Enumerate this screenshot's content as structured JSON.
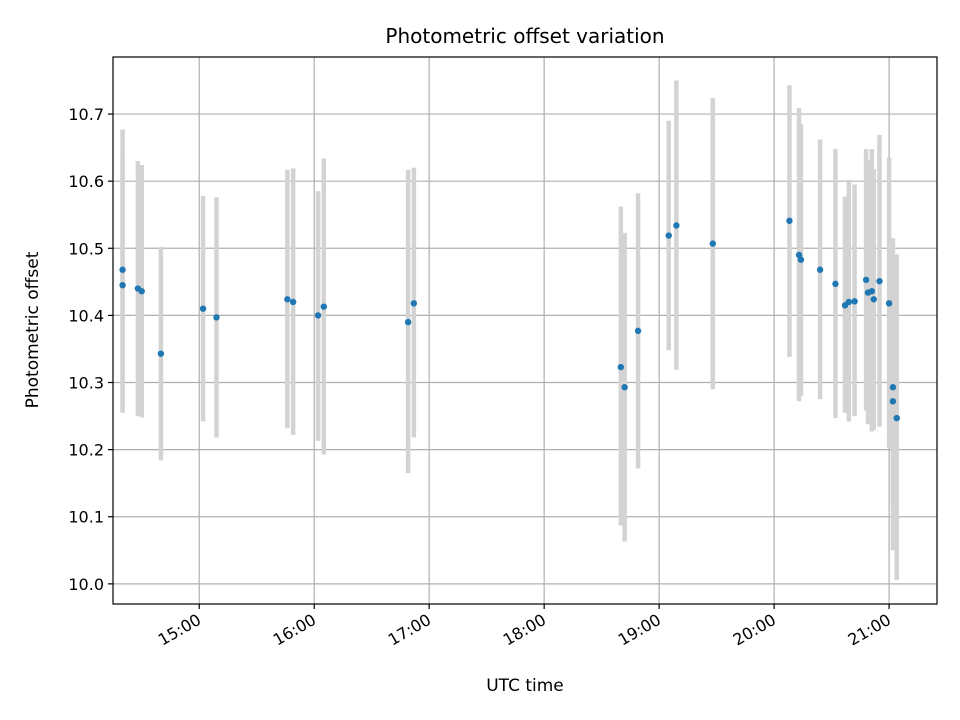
{
  "chart_data": {
    "type": "scatter",
    "title": "Photometric offset variation",
    "xlabel": "UTC time",
    "ylabel": "Photometric offset",
    "xlim": [
      "14:15",
      "21:25"
    ],
    "ylim": [
      9.97,
      10.785
    ],
    "grid": true,
    "legend": "none",
    "colors": {
      "point": "#1f77b4",
      "errorbar": "#d3d3d3",
      "grid": "#b0b0b0"
    },
    "x_ticks": [
      {
        "value": "15:00",
        "label": "15:00"
      },
      {
        "value": "16:00",
        "label": "16:00"
      },
      {
        "value": "17:00",
        "label": "17:00"
      },
      {
        "value": "18:00",
        "label": "18:00"
      },
      {
        "value": "19:00",
        "label": "19:00"
      },
      {
        "value": "20:00",
        "label": "20:00"
      },
      {
        "value": "21:00",
        "label": "21:00"
      }
    ],
    "y_ticks": [
      {
        "value": 10.0,
        "label": "10.0"
      },
      {
        "value": 10.1,
        "label": "10.1"
      },
      {
        "value": 10.2,
        "label": "10.2"
      },
      {
        "value": 10.3,
        "label": "10.3"
      },
      {
        "value": 10.4,
        "label": "10.4"
      },
      {
        "value": 10.5,
        "label": "10.5"
      },
      {
        "value": 10.6,
        "label": "10.6"
      },
      {
        "value": 10.7,
        "label": "10.7"
      }
    ],
    "points": [
      {
        "x": "14:20",
        "y": 10.445,
        "lo": 10.255,
        "hi": 10.635
      },
      {
        "x": "14:20",
        "y": 10.468,
        "lo": 10.258,
        "hi": 10.677
      },
      {
        "x": "14:28",
        "y": 10.44,
        "lo": 10.25,
        "hi": 10.63
      },
      {
        "x": "14:30",
        "y": 10.436,
        "lo": 10.248,
        "hi": 10.624
      },
      {
        "x": "14:40",
        "y": 10.343,
        "lo": 10.184,
        "hi": 10.502
      },
      {
        "x": "15:02",
        "y": 10.41,
        "lo": 10.242,
        "hi": 10.578
      },
      {
        "x": "15:09",
        "y": 10.397,
        "lo": 10.218,
        "hi": 10.576
      },
      {
        "x": "15:46",
        "y": 10.424,
        "lo": 10.232,
        "hi": 10.617
      },
      {
        "x": "15:49",
        "y": 10.42,
        "lo": 10.222,
        "hi": 10.619
      },
      {
        "x": "16:02",
        "y": 10.4,
        "lo": 10.213,
        "hi": 10.585
      },
      {
        "x": "16:05",
        "y": 10.413,
        "lo": 10.193,
        "hi": 10.634
      },
      {
        "x": "16:49",
        "y": 10.39,
        "lo": 10.165,
        "hi": 10.617
      },
      {
        "x": "16:52",
        "y": 10.418,
        "lo": 10.218,
        "hi": 10.62
      },
      {
        "x": "18:40",
        "y": 10.323,
        "lo": 10.087,
        "hi": 10.562
      },
      {
        "x": "18:42",
        "y": 10.293,
        "lo": 10.063,
        "hi": 10.523
      },
      {
        "x": "18:49",
        "y": 10.377,
        "lo": 10.172,
        "hi": 10.582
      },
      {
        "x": "19:05",
        "y": 10.519,
        "lo": 10.348,
        "hi": 10.69
      },
      {
        "x": "19:09",
        "y": 10.534,
        "lo": 10.319,
        "hi": 10.75
      },
      {
        "x": "19:28",
        "y": 10.507,
        "lo": 10.29,
        "hi": 10.724
      },
      {
        "x": "20:08",
        "y": 10.541,
        "lo": 10.338,
        "hi": 10.743
      },
      {
        "x": "20:13",
        "y": 10.49,
        "lo": 10.272,
        "hi": 10.709
      },
      {
        "x": "20:14",
        "y": 10.483,
        "lo": 10.28,
        "hi": 10.685
      },
      {
        "x": "20:24",
        "y": 10.468,
        "lo": 10.275,
        "hi": 10.662
      },
      {
        "x": "20:32",
        "y": 10.447,
        "lo": 10.247,
        "hi": 10.648
      },
      {
        "x": "20:37",
        "y": 10.415,
        "lo": 10.255,
        "hi": 10.577
      },
      {
        "x": "20:39",
        "y": 10.42,
        "lo": 10.242,
        "hi": 10.602
      },
      {
        "x": "20:42",
        "y": 10.421,
        "lo": 10.25,
        "hi": 10.595
      },
      {
        "x": "20:48",
        "y": 10.453,
        "lo": 10.258,
        "hi": 10.648
      },
      {
        "x": "20:49",
        "y": 10.434,
        "lo": 10.238,
        "hi": 10.631
      },
      {
        "x": "20:51",
        "y": 10.436,
        "lo": 10.227,
        "hi": 10.648
      },
      {
        "x": "20:52",
        "y": 10.424,
        "lo": 10.23,
        "hi": 10.618
      },
      {
        "x": "20:55",
        "y": 10.451,
        "lo": 10.234,
        "hi": 10.669
      },
      {
        "x": "20:60",
        "y": 10.418,
        "lo": 10.202,
        "hi": 10.635
      },
      {
        "x": "21:02",
        "y": 10.293,
        "lo": 10.05,
        "hi": 10.515
      },
      {
        "x": "21:02",
        "y": 10.272,
        "lo": 10.12,
        "hi": 10.43
      },
      {
        "x": "21:04",
        "y": 10.247,
        "lo": 10.006,
        "hi": 10.491
      }
    ]
  }
}
